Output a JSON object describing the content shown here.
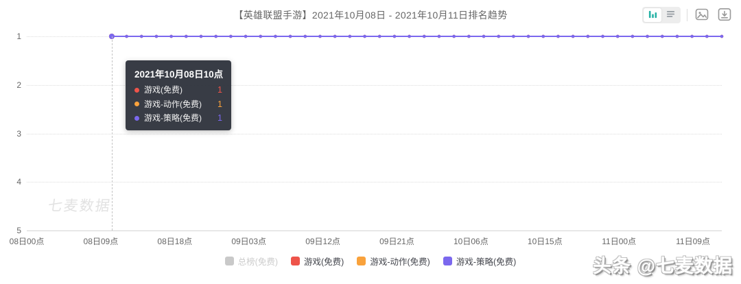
{
  "header": {
    "title": "【英雄联盟手游】2021年10月08日 - 2021年10月11日排名趋势",
    "toolbar": {
      "view_toggle": [
        "bar-chart-view-icon",
        "list-view-icon"
      ],
      "action_icons": [
        "export-image-icon",
        "download-icon"
      ],
      "active_view": "bar-chart-view",
      "accent_color": "#27b2a6",
      "icon_color": "#999999"
    }
  },
  "chart_data": {
    "type": "line",
    "title": "【英雄联盟手游】2021年10月08日 - 2021年10月11日排名趋势",
    "x_ticks": [
      "08日00点",
      "08日09点",
      "08日18点",
      "09日03点",
      "09日12点",
      "09日21点",
      "10日06点",
      "10日15点",
      "11日00点",
      "11日09点"
    ],
    "x_tick_interval_hours": 9,
    "y_ticks": [
      "1",
      "2",
      "3",
      "4",
      "5"
    ],
    "ylim": [
      1,
      5
    ],
    "y_inverted": true,
    "grid": "dotted-horizontal",
    "legend_position": "bottom",
    "series": [
      {
        "name": "总榜(免费)",
        "color": "#c9c9c9",
        "visible": false,
        "data": []
      },
      {
        "name": "游戏(免费)",
        "color": "#ee544a",
        "visible": true,
        "data": {
          "start": "08日10点",
          "end": "11日12点",
          "rank_constant": 1
        }
      },
      {
        "name": "游戏-动作(免费)",
        "color": "#f9a23c",
        "visible": true,
        "data": {
          "start": "08日10点",
          "end": "11日12点",
          "rank_constant": 1
        }
      },
      {
        "name": "游戏-策略(免费)",
        "color": "#7b68ee",
        "visible": true,
        "data": {
          "start": "08日10点",
          "end": "11日12点",
          "rank_constant": 1
        }
      }
    ],
    "plot": {
      "axis_start_hour": 0,
      "axis_end_hour": 84.5,
      "line_start_hour": 10,
      "marker_count": 42
    }
  },
  "tooltip": {
    "title": "2021年10月08日10点",
    "rows": [
      {
        "label": "游戏(免费)",
        "value": 1,
        "color": "#ee544a"
      },
      {
        "label": "游戏-动作(免费)",
        "value": 1,
        "color": "#f9a23c"
      },
      {
        "label": "游戏-策略(免费)",
        "value": 1,
        "color": "#7b68ee"
      }
    ]
  },
  "watermarks": {
    "chart": "七麦数据",
    "footer": "头条 @七麦数据"
  }
}
